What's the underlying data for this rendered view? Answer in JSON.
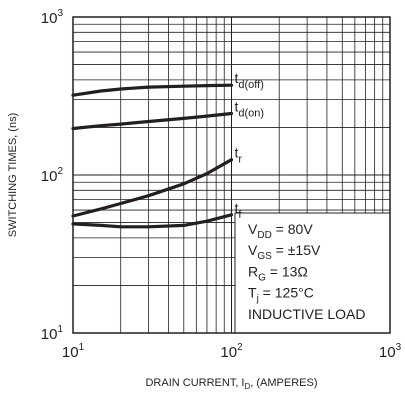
{
  "chart_data": {
    "type": "line",
    "xlabel": "DRAIN CURRENT, I",
    "xlabel_sub": "D",
    "xlabel_tail": ", (AMPERES)",
    "ylabel": "SWITCHING TIMES, (ns)",
    "x_scale": "log",
    "y_scale": "log",
    "xlim": [
      10,
      1000
    ],
    "ylim": [
      10,
      1000
    ],
    "grid": true,
    "x_ticks": [
      {
        "base": "10",
        "exp": "1"
      },
      {
        "base": "10",
        "exp": "2"
      },
      {
        "base": "10",
        "exp": "3"
      }
    ],
    "y_ticks": [
      {
        "base": "10",
        "exp": "1"
      },
      {
        "base": "10",
        "exp": "2"
      },
      {
        "base": "10",
        "exp": "3"
      }
    ],
    "series": [
      {
        "name": "t",
        "sub": "d(off)",
        "x": [
          10,
          15,
          20,
          30,
          50,
          70,
          100
        ],
        "y": [
          320,
          340,
          350,
          360,
          365,
          368,
          370
        ]
      },
      {
        "name": "t",
        "sub": "d(on)",
        "x": [
          10,
          15,
          20,
          30,
          50,
          70,
          100
        ],
        "y": [
          197,
          205,
          210,
          218,
          228,
          236,
          245
        ]
      },
      {
        "name": "t",
        "sub": "r",
        "x": [
          10,
          15,
          20,
          30,
          50,
          70,
          100
        ],
        "y": [
          55,
          61,
          66,
          74,
          88,
          102,
          125
        ]
      },
      {
        "name": "t",
        "sub": "f",
        "x": [
          10,
          15,
          20,
          30,
          50,
          70,
          100
        ],
        "y": [
          49,
          48,
          47,
          47,
          48,
          51,
          56
        ]
      }
    ],
    "conditions": [
      {
        "main": "V",
        "sub": "DD",
        "tail": " = 80V"
      },
      {
        "main": "V",
        "sub": "GS",
        "tail": " = ±15V"
      },
      {
        "main": "R",
        "sub": "G",
        "tail": " = 13Ω"
      },
      {
        "main": "T",
        "sub": "j",
        "tail": " = 125°C"
      },
      {
        "main": "INDUCTIVE LOAD",
        "sub": "",
        "tail": ""
      }
    ],
    "colors": {
      "ink": "#231f20",
      "background": "#ffffff"
    }
  }
}
